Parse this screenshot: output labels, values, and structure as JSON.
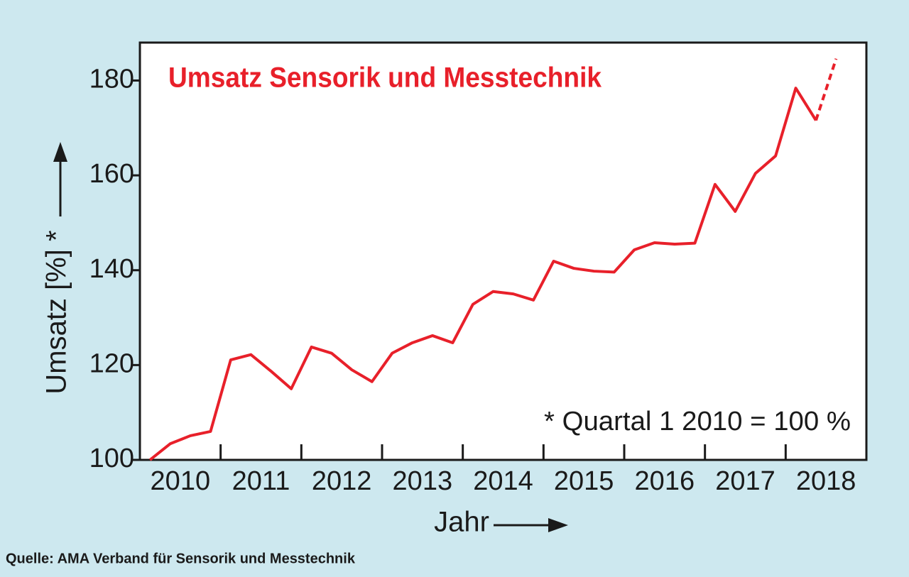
{
  "chart_data": {
    "type": "line",
    "title": "Umsatz Sensorik und Messtechnik",
    "y_label": "Umsatz [%] *",
    "x_label": "Jahr",
    "annotation": "* Quartal 1 2010 = 100 %",
    "source": "Quelle: AMA Verband für Sensorik und Messtechnik",
    "color": "#e8202a",
    "x": [
      2010.125,
      2010.375,
      2010.625,
      2010.875,
      2011.125,
      2011.375,
      2011.625,
      2011.875,
      2012.125,
      2012.375,
      2012.625,
      2012.875,
      2013.125,
      2013.375,
      2013.625,
      2013.875,
      2014.125,
      2014.375,
      2014.625,
      2014.875,
      2015.125,
      2015.375,
      2015.625,
      2015.875,
      2016.125,
      2016.375,
      2016.625,
      2016.875,
      2017.125,
      2017.375,
      2017.625,
      2017.875,
      2018.125,
      2018.375,
      2018.625
    ],
    "values": [
      100,
      103.4,
      105.1,
      106,
      121.1,
      122.2,
      118.7,
      115,
      123.8,
      122.5,
      119,
      116.5,
      122.5,
      124.7,
      126.2,
      124.7,
      132.8,
      135.5,
      135,
      133.7,
      141.9,
      140.4,
      139.8,
      139.6,
      144.3,
      145.8,
      145.5,
      145.7,
      158.1,
      152.4,
      160.4,
      164.1,
      178.4,
      171.6,
      184.6
    ],
    "dashed_from_index": 33,
    "xlim": [
      2010,
      2019
    ],
    "xticks": [
      {
        "value": 2010.5,
        "label": "2010"
      },
      {
        "value": 2011.5,
        "label": "2011"
      },
      {
        "value": 2012.5,
        "label": "2012"
      },
      {
        "value": 2013.5,
        "label": "2013"
      },
      {
        "value": 2014.5,
        "label": "2014"
      },
      {
        "value": 2015.5,
        "label": "2015"
      },
      {
        "value": 2016.5,
        "label": "2016"
      },
      {
        "value": 2017.5,
        "label": "2017"
      },
      {
        "value": 2018.5,
        "label": "2018"
      }
    ],
    "xtick_marks": [
      2011,
      2012,
      2013,
      2014,
      2015,
      2016,
      2017,
      2018
    ],
    "ylim": [
      100,
      188
    ],
    "yticks": [
      100,
      120,
      140,
      160,
      180
    ]
  }
}
